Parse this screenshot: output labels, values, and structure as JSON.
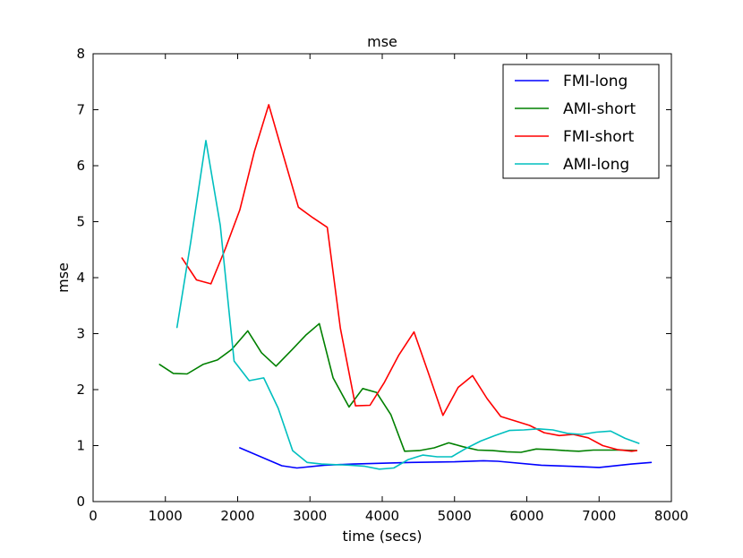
{
  "chart_data": {
    "type": "line",
    "title": "mse",
    "xlabel": "time (secs)",
    "ylabel": "mse",
    "xlim": [
      0,
      8000
    ],
    "ylim": [
      0,
      8
    ],
    "xticks": [
      0,
      1000,
      2000,
      3000,
      4000,
      5000,
      6000,
      7000,
      8000
    ],
    "xtick_labels": [
      "0",
      "1000",
      "2000",
      "3000",
      "4000",
      "5000",
      "6000",
      "7000",
      "8000"
    ],
    "yticks": [
      0,
      1,
      2,
      3,
      4,
      5,
      6,
      7,
      8
    ],
    "ytick_labels": [
      "0",
      "1",
      "2",
      "3",
      "4",
      "5",
      "6",
      "7",
      "8"
    ],
    "grid": false,
    "legend_position": "top-right",
    "series": [
      {
        "name": "FMI-long",
        "color": "#0000ff",
        "x": [
          2030,
          2610,
          2820,
          3200,
          3600,
          4400,
          5000,
          5400,
          5600,
          6200,
          6600,
          7000,
          7450,
          7720
        ],
        "y": [
          0.96,
          0.64,
          0.6,
          0.65,
          0.67,
          0.7,
          0.71,
          0.73,
          0.72,
          0.65,
          0.63,
          0.61,
          0.67,
          0.7
        ]
      },
      {
        "name": "AMI-short",
        "color": "#008000",
        "x": [
          920,
          1110,
          1300,
          1520,
          1720,
          1920,
          2140,
          2330,
          2530,
          2750,
          2940,
          3130,
          3320,
          3540,
          3730,
          3920,
          4120,
          4310,
          4510,
          4720,
          4920,
          5120,
          5320,
          5530,
          5720,
          5920,
          6130,
          6320,
          6530,
          6720,
          6920,
          7120,
          7320,
          7520
        ],
        "y": [
          2.45,
          2.29,
          2.28,
          2.45,
          2.53,
          2.72,
          3.05,
          2.66,
          2.42,
          2.71,
          2.97,
          3.18,
          2.21,
          1.69,
          2.02,
          1.95,
          1.55,
          0.9,
          0.91,
          0.96,
          1.05,
          0.98,
          0.92,
          0.91,
          0.89,
          0.88,
          0.94,
          0.93,
          0.91,
          0.9,
          0.92,
          0.92,
          0.92,
          0.91
        ],
        "label_placeholder": ""
      },
      {
        "name": "FMI-short",
        "color": "#ff0000",
        "x": [
          1230,
          1430,
          1630,
          1830,
          2030,
          2230,
          2430,
          2630,
          2840,
          3040,
          3240,
          3420,
          3630,
          3830,
          4030,
          4230,
          4440,
          4640,
          4840,
          5050,
          5250,
          5450,
          5640,
          5840,
          6040,
          6240,
          6450,
          6640,
          6850,
          7050,
          7250,
          7450,
          7520
        ],
        "y": [
          4.35,
          3.96,
          3.89,
          4.52,
          5.21,
          6.25,
          7.09,
          6.19,
          5.26,
          5.07,
          4.9,
          3.1,
          1.71,
          1.72,
          2.13,
          2.62,
          3.03,
          2.29,
          1.54,
          2.04,
          2.25,
          1.84,
          1.52,
          1.44,
          1.36,
          1.23,
          1.18,
          1.2,
          1.14,
          1.0,
          0.93,
          0.9,
          0.91
        ]
      },
      {
        "name": "AMI-long",
        "color": "#00bfbf",
        "x": [
          1160,
          1350,
          1560,
          1760,
          1950,
          2160,
          2360,
          2560,
          2760,
          2960,
          3160,
          3360,
          3560,
          3760,
          3960,
          4160,
          4360,
          4560,
          4760,
          4960,
          5160,
          5360,
          5560,
          5760,
          5960,
          6160,
          6360,
          6560,
          6760,
          6960,
          7160,
          7360,
          7550
        ],
        "y": [
          3.11,
          4.63,
          6.45,
          4.93,
          2.51,
          2.16,
          2.21,
          1.67,
          0.91,
          0.7,
          0.67,
          0.66,
          0.65,
          0.63,
          0.58,
          0.6,
          0.75,
          0.83,
          0.8,
          0.8,
          0.95,
          1.08,
          1.18,
          1.27,
          1.28,
          1.3,
          1.28,
          1.22,
          1.2,
          1.24,
          1.26,
          1.13,
          1.04
        ]
      }
    ]
  }
}
